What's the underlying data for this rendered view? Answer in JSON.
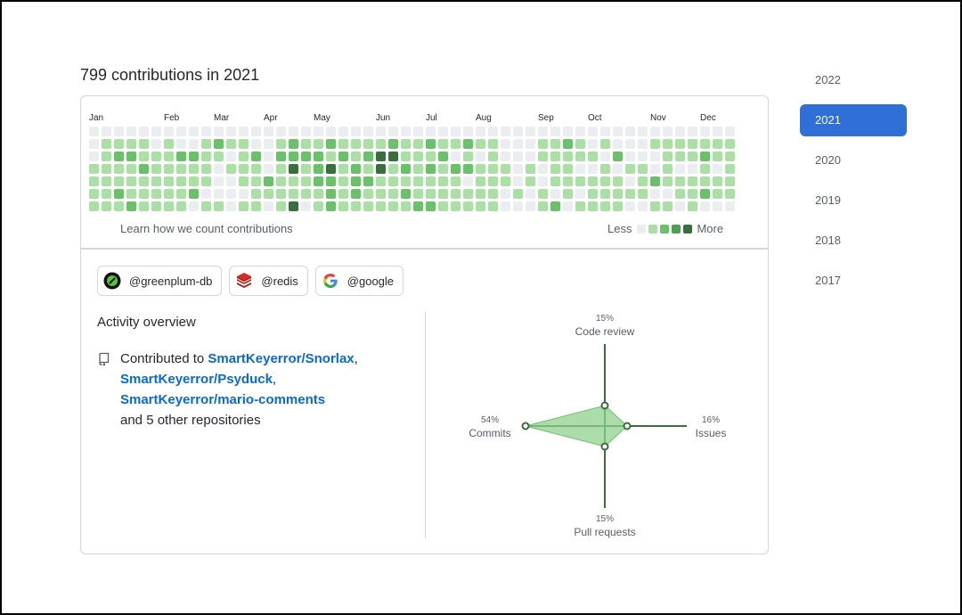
{
  "heading": "799 contributions in 2021",
  "months": [
    {
      "label": "Jan",
      "week": 0
    },
    {
      "label": "Feb",
      "week": 6
    },
    {
      "label": "Mar",
      "week": 10
    },
    {
      "label": "Apr",
      "week": 14
    },
    {
      "label": "May",
      "week": 18
    },
    {
      "label": "Jun",
      "week": 23
    },
    {
      "label": "Jul",
      "week": 27
    },
    {
      "label": "Aug",
      "week": 31
    },
    {
      "label": "Sep",
      "week": 36
    },
    {
      "label": "Oct",
      "week": 40
    },
    {
      "label": "Nov",
      "week": 45
    },
    {
      "label": "Dec",
      "week": 49
    }
  ],
  "contribution_levels": [
    "0000000000000000000000000000000000000000000000000000",
    "0111101001211001211211112112112110001121010001111111",
    "0122111221101202222121233111201010001111102000111211",
    "1111211111011101312312131212122111010110010110100101",
    "1111111111001121112212211111110111010111111012111111",
    "1121111120000111111212111211111110101010111110011211",
    "1112111101101101301211111122111110001201111001101000"
  ],
  "colors": {
    "level0": "#ebedf0",
    "level1": "#acdfa6",
    "level2": "#6cc06c",
    "level3": "#3a6e3e",
    "accent": "#2f6fd6",
    "radar_line": "#3a6e3e",
    "radar_fill": "#8fd08c"
  },
  "learn_link": "Learn how we count contributions",
  "legend": {
    "less": "Less",
    "more": "More"
  },
  "orgs": [
    {
      "name": "@greenplum-db",
      "icon": "greenplum-logo-icon"
    },
    {
      "name": "@redis",
      "icon": "redis-logo-icon"
    },
    {
      "name": "@google",
      "icon": "google-logo-icon"
    }
  ],
  "activity": {
    "title": "Activity overview",
    "prefix": "Contributed to ",
    "repos": [
      "SmartKeyerror/Snorlax",
      "SmartKeyerror/Psyduck",
      "SmartKeyerror/mario-comments"
    ],
    "suffix": "and 5 other repositories"
  },
  "radar": {
    "code_review": {
      "label": "Code review",
      "pct": "15%",
      "value": 15
    },
    "issues": {
      "label": "Issues",
      "pct": "16%",
      "value": 16
    },
    "pull_requests": {
      "label": "Pull requests",
      "pct": "15%",
      "value": 15
    },
    "commits": {
      "label": "Commits",
      "pct": "54%",
      "value": 54
    }
  },
  "years": [
    "2022",
    "2021",
    "2020",
    "2019",
    "2018",
    "2017"
  ],
  "selected_year": "2021"
}
